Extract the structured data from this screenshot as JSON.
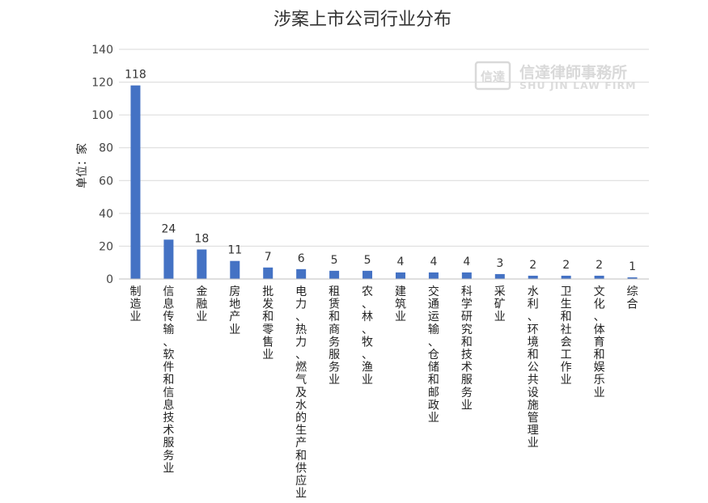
{
  "chart_data": {
    "type": "bar",
    "title": "涉案上市公司行业分布",
    "ylabel": "单位：家",
    "xlabel": "",
    "ylim": [
      0,
      140
    ],
    "yticks": [
      0,
      20,
      40,
      60,
      80,
      100,
      120,
      140
    ],
    "grid": true,
    "bar_color": "#4472c4",
    "categories": [
      "制造业",
      "信息传输、软件和信息技术服务业",
      "金融业",
      "房地产业",
      "批发和零售业",
      "电力、热力、燃气及水的生产和供应业",
      "租赁和商务服务业",
      "农、林、牧、渔业",
      "建筑业",
      "交通运输、仓储和邮政业",
      "科学研究和技术服务业",
      "采矿业",
      "水利、环境和公共设施管理业",
      "卫生和社会工作业",
      "文化、体育和娱乐业",
      "综合"
    ],
    "values": [
      118,
      24,
      18,
      11,
      7,
      6,
      5,
      5,
      4,
      4,
      4,
      3,
      2,
      2,
      2,
      1
    ]
  },
  "watermark": {
    "seal_text": "信達",
    "name_cn": "信達律師事務所",
    "name_en": "SHU JIN LAW FIRM",
    "color": "#d9d9d9"
  }
}
